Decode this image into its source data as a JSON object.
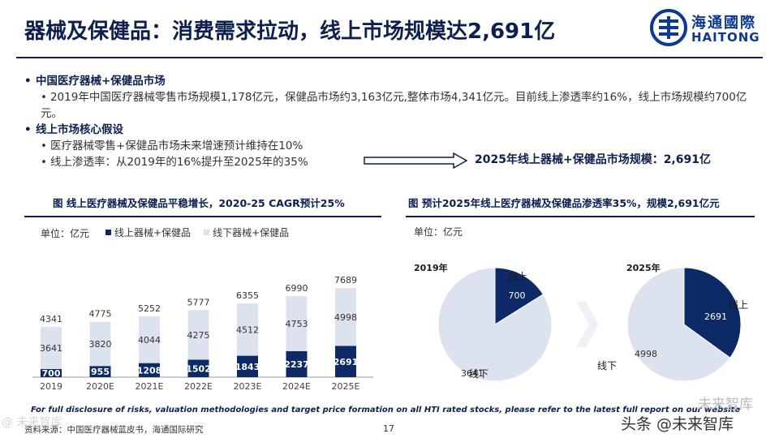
{
  "title": "器械及保健品：消费需求拉动，线上市场规模达2,691亿",
  "logo": {
    "cn": "海通國際",
    "en": "HAITONG"
  },
  "bullets": [
    {
      "head": "中国医疗器械+保健品市场",
      "subs": [
        "2019年中国医疗器械零售市场规模1,178亿元，保健品市场约3,163亿元,整体市场4,341亿元。目前线上渗透率约16%，线上市场规模约700亿元。"
      ]
    },
    {
      "head": "线上市场核心假设",
      "subs": [
        "医疗器械零售+保健品市场未来增速预计维持在10%",
        "线上渗透率：从2019年的16%提升至2025年的35%"
      ]
    }
  ],
  "arrow_text": "2025年线上器械+保健品市场规模：2,691亿",
  "left_panel": {
    "title": "图 线上医疗器械及保健品平稳增长，2020-25 CAGR预计25%",
    "unit": "单位：亿元",
    "legend": [
      "线上器械+保健品",
      "线下器械+保健品"
    ]
  },
  "right_panel": {
    "title": "图 预计2025年线上医疗器械及保健品渗透率35%，规模2,691亿元",
    "unit": "单位：亿元"
  },
  "chart_data": [
    {
      "type": "bar",
      "stacked": true,
      "categories": [
        "2019",
        "2020E",
        "2021E",
        "2022E",
        "2023E",
        "2024E",
        "2025E"
      ],
      "series": [
        {
          "name": "线上器械+保健品",
          "values": [
            700,
            955,
            1208,
            1502,
            1843,
            2237,
            2691
          ],
          "color": "#0d2a66"
        },
        {
          "name": "线下器械+保健品",
          "values": [
            3641,
            3820,
            4044,
            4275,
            4512,
            4753,
            4998
          ],
          "color": "#dce3ee"
        }
      ],
      "totals": [
        4341,
        4775,
        5252,
        5777,
        6355,
        6990,
        7689
      ]
    },
    {
      "type": "pie",
      "label": "2019年",
      "slices": [
        {
          "name": "线上",
          "value": 700,
          "color": "#0d2a66"
        },
        {
          "name": "线下",
          "value": 3641,
          "color": "#dce3ee"
        }
      ]
    },
    {
      "type": "pie",
      "label": "2025年",
      "slices": [
        {
          "name": "线上",
          "value": 2691,
          "color": "#0d2a66"
        },
        {
          "name": "线下",
          "value": 4998,
          "color": "#dce3ee"
        }
      ]
    }
  ],
  "disclaimer": "For full disclosure of risks, valuation methodologies and target price formation on all HTI rated stocks, please refer to the latest full report on our website",
  "source": "资料来源：中国医疗器械蓝皮书，海通国际研究",
  "page_number": "17",
  "watermark_left": "@ 未来智库",
  "watermark_right": "头条 @未来智库",
  "watermark_right2": "未来智库"
}
